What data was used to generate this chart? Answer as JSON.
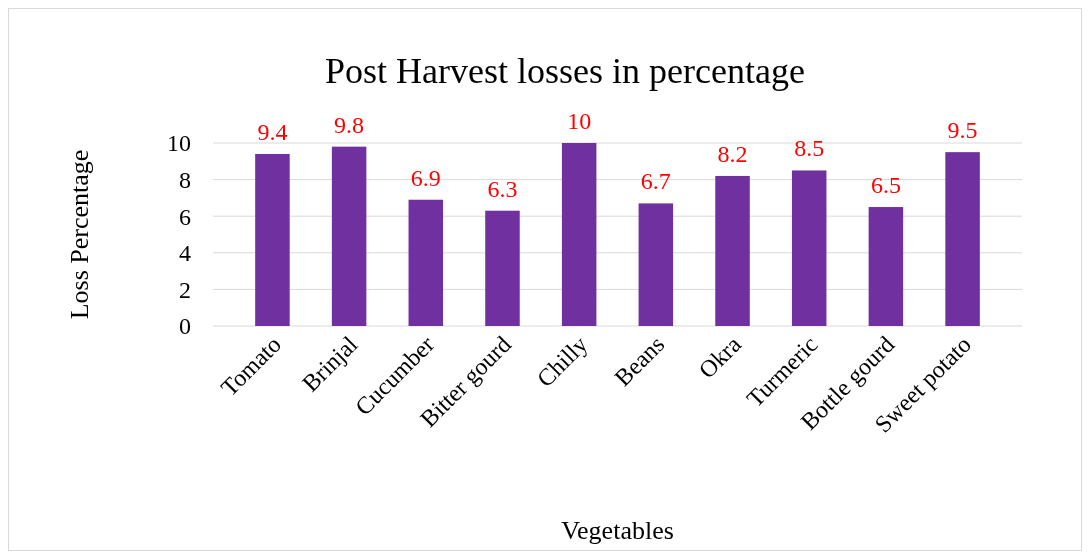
{
  "chart_data": {
    "type": "bar",
    "title": "Post Harvest losses in percentage",
    "xlabel": "Vegetables",
    "ylabel": "Loss Percentage",
    "categories": [
      "Tomato",
      "Brinjal",
      "Cucumber",
      "Bitter gourd",
      "Chilly",
      "Beans",
      "Okra",
      "Turmeric",
      "Bottle gourd",
      "Sweet potato"
    ],
    "values": [
      9.4,
      9.8,
      6.9,
      6.3,
      10,
      6.7,
      8.2,
      8.5,
      6.5,
      9.5
    ],
    "color": "#7030a0",
    "ylim": [
      0,
      10
    ],
    "yticks": [
      0,
      2,
      4,
      6,
      8,
      10
    ],
    "grid": "y",
    "data_labels": true
  }
}
